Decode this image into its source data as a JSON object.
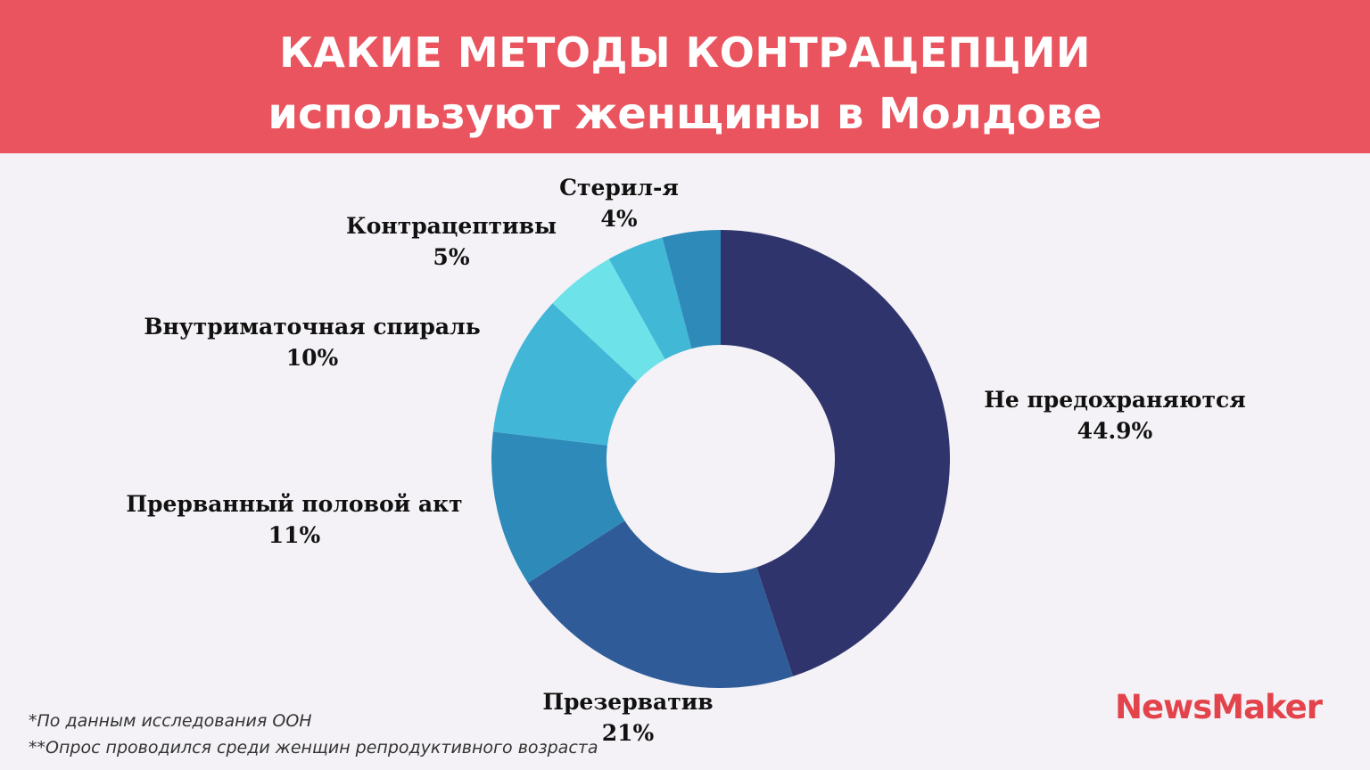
{
  "header": {
    "title_line_1": "КАКИЕ МЕТОДЫ КОНТРАЦЕПЦИИ",
    "title_line_2": "используют женщины в Молдове",
    "background": "#e9545e"
  },
  "chart_data": {
    "type": "pie",
    "donut": true,
    "title": "КАКИЕ МЕТОДЫ КОНТРАЦЕПЦИИ используют женщины в Молдове",
    "slices": [
      {
        "label": "Не предохраняются",
        "value": 44.9,
        "value_label": "44.9%",
        "color": "#30346c"
      },
      {
        "label": "Презерватив",
        "value": 21,
        "value_label": "21%",
        "color": "#2f5c98"
      },
      {
        "label": "Прерванный половой акт",
        "value": 11,
        "value_label": "11%",
        "color": "#2e8ab9"
      },
      {
        "label": "Внутриматочная спираль",
        "value": 10,
        "value_label": "10%",
        "color": "#42b6d7"
      },
      {
        "label": "Контрацептивы",
        "value": 5,
        "value_label": "5%",
        "color": "#6de3e9"
      },
      {
        "label": "Стерил-я",
        "value": 4,
        "value_label": "4%",
        "color": "#41b8d6"
      },
      {
        "label": "",
        "value": 4.1,
        "value_label": "",
        "color": "#2e8ab9"
      }
    ],
    "legend": "none"
  },
  "footnotes": {
    "line_1": "*По данным исследования ООН",
    "line_2": "**Опрос проводился среди женщин репродуктивного возраста"
  },
  "logo": {
    "text": "NewsMaker",
    "color": "#e3434b"
  }
}
